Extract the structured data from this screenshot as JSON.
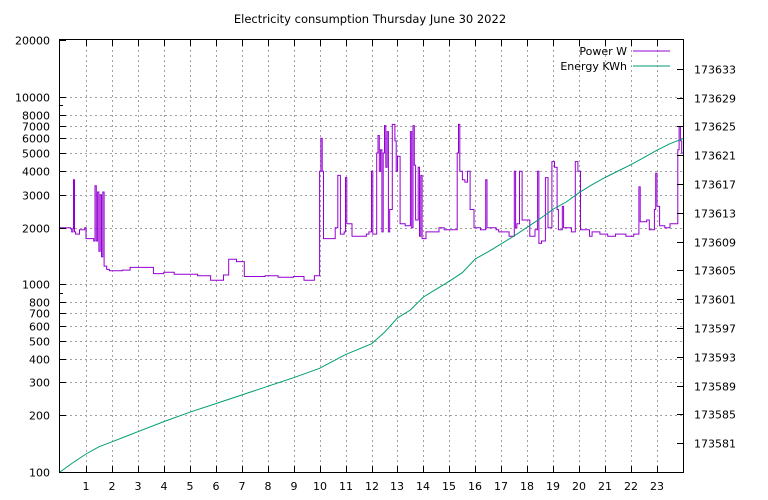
{
  "chart_data": {
    "type": "line",
    "title": "Electricity consumption Thursday June 30 2022",
    "xlim": [
      0,
      24
    ],
    "x_ticks": [
      1,
      2,
      3,
      4,
      5,
      6,
      7,
      8,
      9,
      10,
      11,
      12,
      13,
      14,
      15,
      16,
      17,
      18,
      19,
      20,
      21,
      22,
      23
    ],
    "y_left": {
      "scale": "log",
      "ylim": [
        100,
        20000
      ],
      "ticks": [
        100,
        200,
        300,
        400,
        500,
        600,
        700,
        800,
        1000,
        2000,
        3000,
        4000,
        5000,
        6000,
        7000,
        8000,
        10000,
        20000
      ],
      "tick_labels": [
        "100",
        "200",
        "300",
        "400",
        "500",
        "600",
        "700",
        "800",
        "1000",
        "2000",
        "3000",
        "4000",
        "5000",
        "6000",
        "7000",
        "8000",
        "10000",
        "20000"
      ]
    },
    "y_right": {
      "scale": "linear",
      "ylim": [
        173577,
        173637
      ],
      "ticks": [
        173581,
        173585,
        173589,
        173593,
        173597,
        173601,
        173605,
        173609,
        173613,
        173617,
        173621,
        173625,
        173629,
        173633
      ]
    },
    "grid": true,
    "legend_position": "top-right",
    "series": [
      {
        "name": "Power W",
        "axis": "left",
        "color": "#9400d3",
        "step": true,
        "points": [
          [
            0.0,
            2000
          ],
          [
            0.4,
            1980
          ],
          [
            0.45,
            1900
          ],
          [
            0.5,
            1980
          ],
          [
            0.52,
            3600
          ],
          [
            0.56,
            1900
          ],
          [
            0.6,
            1850
          ],
          [
            0.75,
            1950
          ],
          [
            0.95,
            2000
          ],
          [
            1.0,
            1750
          ],
          [
            1.3,
            1700
          ],
          [
            1.35,
            3350
          ],
          [
            1.4,
            1700
          ],
          [
            1.45,
            3100
          ],
          [
            1.5,
            1500
          ],
          [
            1.55,
            3000
          ],
          [
            1.6,
            1400
          ],
          [
            1.65,
            3100
          ],
          [
            1.7,
            1250
          ],
          [
            1.8,
            1200
          ],
          [
            1.9,
            1180
          ],
          [
            2.4,
            1190
          ],
          [
            2.7,
            1230
          ],
          [
            3.6,
            1140
          ],
          [
            4.0,
            1160
          ],
          [
            4.4,
            1130
          ],
          [
            5.3,
            1110
          ],
          [
            5.8,
            1050
          ],
          [
            6.3,
            1120
          ],
          [
            6.5,
            1360
          ],
          [
            6.8,
            1320
          ],
          [
            7.1,
            1100
          ],
          [
            7.9,
            1110
          ],
          [
            8.4,
            1090
          ],
          [
            9.0,
            1100
          ],
          [
            9.4,
            1050
          ],
          [
            9.8,
            1110
          ],
          [
            10.0,
            4000
          ],
          [
            10.05,
            6000
          ],
          [
            10.1,
            4000
          ],
          [
            10.15,
            1750
          ],
          [
            10.6,
            2000
          ],
          [
            10.7,
            3800
          ],
          [
            10.8,
            1850
          ],
          [
            10.95,
            1900
          ],
          [
            11.0,
            3700
          ],
          [
            11.05,
            2100
          ],
          [
            11.25,
            1800
          ],
          [
            11.8,
            1850
          ],
          [
            11.9,
            1900
          ],
          [
            12.0,
            4000
          ],
          [
            12.05,
            1850
          ],
          [
            12.2,
            5000
          ],
          [
            12.25,
            6200
          ],
          [
            12.3,
            4000
          ],
          [
            12.35,
            5200
          ],
          [
            12.4,
            1900
          ],
          [
            12.45,
            5000
          ],
          [
            12.5,
            7000
          ],
          [
            12.55,
            4200
          ],
          [
            12.6,
            6500
          ],
          [
            12.65,
            1900
          ],
          [
            12.7,
            2500
          ],
          [
            12.8,
            7100
          ],
          [
            12.9,
            5800
          ],
          [
            12.95,
            4000
          ],
          [
            13.0,
            4800
          ],
          [
            13.1,
            2100
          ],
          [
            13.3,
            2050
          ],
          [
            13.5,
            6500
          ],
          [
            13.55,
            2000
          ],
          [
            13.6,
            7000
          ],
          [
            13.65,
            4300
          ],
          [
            13.7,
            2200
          ],
          [
            13.8,
            4200
          ],
          [
            13.85,
            1800
          ],
          [
            13.9,
            3800
          ],
          [
            13.95,
            1750
          ],
          [
            14.1,
            1900
          ],
          [
            14.6,
            2000
          ],
          [
            14.8,
            1950
          ],
          [
            15.2,
            1950
          ],
          [
            15.3,
            5000
          ],
          [
            15.35,
            7100
          ],
          [
            15.4,
            4000
          ],
          [
            15.5,
            3600
          ],
          [
            15.6,
            3500
          ],
          [
            15.7,
            4000
          ],
          [
            15.8,
            2500
          ],
          [
            15.95,
            2000
          ],
          [
            16.2,
            1950
          ],
          [
            16.4,
            3600
          ],
          [
            16.45,
            2000
          ],
          [
            16.8,
            1950
          ],
          [
            16.9,
            1900
          ],
          [
            17.3,
            1800
          ],
          [
            17.5,
            4000
          ],
          [
            17.55,
            2000
          ],
          [
            17.6,
            2100
          ],
          [
            17.7,
            4000
          ],
          [
            17.8,
            2200
          ],
          [
            18.1,
            1800
          ],
          [
            18.3,
            1950
          ],
          [
            18.4,
            4000
          ],
          [
            18.45,
            1650
          ],
          [
            18.55,
            1700
          ],
          [
            18.7,
            3700
          ],
          [
            18.8,
            2000
          ],
          [
            18.95,
            4500
          ],
          [
            19.05,
            4200
          ],
          [
            19.15,
            2500
          ],
          [
            19.2,
            1950
          ],
          [
            19.35,
            2600
          ],
          [
            19.4,
            2000
          ],
          [
            19.6,
            2000
          ],
          [
            19.7,
            1900
          ],
          [
            19.85,
            4500
          ],
          [
            19.95,
            4000
          ],
          [
            20.05,
            1950
          ],
          [
            20.4,
            1800
          ],
          [
            20.5,
            1900
          ],
          [
            20.8,
            1850
          ],
          [
            21.1,
            1800
          ],
          [
            21.4,
            1850
          ],
          [
            21.8,
            1800
          ],
          [
            22.1,
            1850
          ],
          [
            22.3,
            3300
          ],
          [
            22.35,
            2150
          ],
          [
            22.6,
            2200
          ],
          [
            22.7,
            1950
          ],
          [
            22.9,
            2500
          ],
          [
            22.95,
            3900
          ],
          [
            23.0,
            2600
          ],
          [
            23.1,
            2050
          ],
          [
            23.3,
            2000
          ],
          [
            23.5,
            2100
          ],
          [
            23.8,
            5200
          ],
          [
            23.85,
            6900
          ],
          [
            23.9,
            5800
          ],
          [
            23.95,
            5000
          ]
        ]
      },
      {
        "name": "Energy KWh",
        "axis": "right",
        "color": "#009e73",
        "step": false,
        "points": [
          [
            0.0,
            173577
          ],
          [
            0.5,
            173578.3
          ],
          [
            1.0,
            173579.5
          ],
          [
            1.5,
            173580.5
          ],
          [
            2.0,
            173581.2
          ],
          [
            3.0,
            173582.6
          ],
          [
            4.0,
            173584.0
          ],
          [
            5.0,
            173585.3
          ],
          [
            6.0,
            173586.5
          ],
          [
            7.0,
            173587.7
          ],
          [
            8.0,
            173588.9
          ],
          [
            9.0,
            173590.1
          ],
          [
            10.0,
            173591.4
          ],
          [
            11.0,
            173593.3
          ],
          [
            12.0,
            173594.8
          ],
          [
            12.5,
            173596.4
          ],
          [
            13.0,
            173598.4
          ],
          [
            13.5,
            173599.5
          ],
          [
            14.0,
            173601.3
          ],
          [
            14.5,
            173602.4
          ],
          [
            15.0,
            173603.5
          ],
          [
            15.5,
            173604.7
          ],
          [
            16.0,
            173606.6
          ],
          [
            16.5,
            173607.6
          ],
          [
            17.0,
            173608.7
          ],
          [
            17.5,
            173609.8
          ],
          [
            18.0,
            173611.0
          ],
          [
            18.5,
            173612.2
          ],
          [
            19.0,
            173613.5
          ],
          [
            19.5,
            173614.5
          ],
          [
            20.0,
            173615.8
          ],
          [
            20.5,
            173616.9
          ],
          [
            21.0,
            173617.9
          ],
          [
            21.5,
            173618.8
          ],
          [
            22.0,
            173619.7
          ],
          [
            22.5,
            173620.7
          ],
          [
            23.0,
            173621.7
          ],
          [
            23.5,
            173622.6
          ],
          [
            24.0,
            173623.3
          ]
        ]
      }
    ]
  }
}
